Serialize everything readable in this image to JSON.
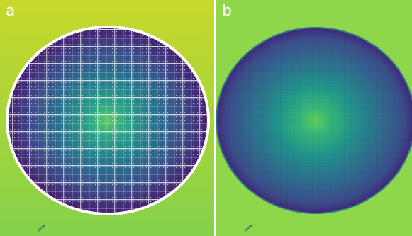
{
  "panels": [
    {
      "label": "a",
      "style": "cross-grid"
    },
    {
      "label": "b",
      "style": "smooth-grid"
    }
  ],
  "colors": {
    "background_a_top": "#c6d92b",
    "background_a_bottom": "#86d24b",
    "background_b": "#8fd64a",
    "disk_center": "#5fcf5e",
    "disk_mid": "#24878f",
    "disk_edge": "#3b2a7e",
    "disk_outer": "#44106b",
    "rim": "#ffffff",
    "label": "#ffffff"
  },
  "icons": [
    "pencil-icon"
  ]
}
